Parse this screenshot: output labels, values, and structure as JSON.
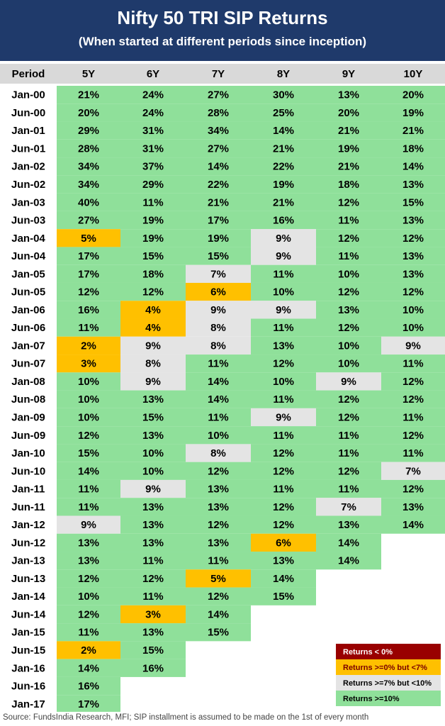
{
  "title": "Nifty 50 TRI SIP Returns",
  "subtitle": "(When started at different periods since inception)",
  "source": "Source: FundsIndia Research, MFI; SIP installment is assumed to be made on the 1st of every month",
  "colors": {
    "header_band": "#1f3a6b",
    "column_header_bg": "#d9d9d9",
    "negative": "#990000",
    "low": "#ffc000",
    "mid": "#e4e4e4",
    "high": "#8fe09a"
  },
  "chart_data": {
    "type": "table",
    "title": "Nifty 50 TRI SIP Returns",
    "subtitle": "(When started at different periods since inception)",
    "row_header": "Period",
    "columns": [
      "5Y",
      "6Y",
      "7Y",
      "8Y",
      "9Y",
      "10Y"
    ],
    "rows": [
      {
        "period": "Jan-00",
        "values": [
          21,
          24,
          27,
          30,
          13,
          20
        ]
      },
      {
        "period": "Jun-00",
        "values": [
          20,
          24,
          28,
          25,
          20,
          19
        ]
      },
      {
        "period": "Jan-01",
        "values": [
          29,
          31,
          34,
          14,
          21,
          21
        ]
      },
      {
        "period": "Jun-01",
        "values": [
          28,
          31,
          27,
          21,
          19,
          18
        ]
      },
      {
        "period": "Jan-02",
        "values": [
          34,
          37,
          14,
          22,
          21,
          14
        ]
      },
      {
        "period": "Jun-02",
        "values": [
          34,
          29,
          22,
          19,
          18,
          13
        ]
      },
      {
        "period": "Jan-03",
        "values": [
          40,
          11,
          21,
          21,
          12,
          15
        ]
      },
      {
        "period": "Jun-03",
        "values": [
          27,
          19,
          17,
          16,
          11,
          13
        ]
      },
      {
        "period": "Jan-04",
        "values": [
          5,
          19,
          19,
          9,
          12,
          12
        ]
      },
      {
        "period": "Jun-04",
        "values": [
          17,
          15,
          15,
          9,
          11,
          13
        ]
      },
      {
        "period": "Jan-05",
        "values": [
          17,
          18,
          7,
          11,
          10,
          13
        ]
      },
      {
        "period": "Jun-05",
        "values": [
          12,
          12,
          6,
          10,
          12,
          12
        ]
      },
      {
        "period": "Jan-06",
        "values": [
          16,
          4,
          9,
          9,
          13,
          10
        ]
      },
      {
        "period": "Jun-06",
        "values": [
          11,
          4,
          8,
          11,
          12,
          10
        ]
      },
      {
        "period": "Jan-07",
        "values": [
          2,
          9,
          8,
          13,
          10,
          9
        ]
      },
      {
        "period": "Jun-07",
        "values": [
          3,
          8,
          11,
          12,
          10,
          11
        ]
      },
      {
        "period": "Jan-08",
        "values": [
          10,
          9,
          14,
          10,
          9,
          12
        ]
      },
      {
        "period": "Jun-08",
        "values": [
          10,
          13,
          14,
          11,
          12,
          12
        ]
      },
      {
        "period": "Jan-09",
        "values": [
          10,
          15,
          11,
          9,
          12,
          11
        ]
      },
      {
        "period": "Jun-09",
        "values": [
          12,
          13,
          10,
          11,
          11,
          12
        ]
      },
      {
        "period": "Jan-10",
        "values": [
          15,
          10,
          8,
          12,
          11,
          11
        ]
      },
      {
        "period": "Jun-10",
        "values": [
          14,
          10,
          12,
          12,
          12,
          7
        ]
      },
      {
        "period": "Jan-11",
        "values": [
          11,
          9,
          13,
          11,
          11,
          12
        ]
      },
      {
        "period": "Jun-11",
        "values": [
          11,
          13,
          13,
          12,
          7,
          13
        ]
      },
      {
        "period": "Jan-12",
        "values": [
          9,
          13,
          12,
          12,
          13,
          14
        ]
      },
      {
        "period": "Jun-12",
        "values": [
          13,
          13,
          13,
          6,
          14,
          null
        ]
      },
      {
        "period": "Jan-13",
        "values": [
          13,
          11,
          11,
          13,
          14,
          null
        ]
      },
      {
        "period": "Jun-13",
        "values": [
          12,
          12,
          5,
          14,
          null,
          null
        ]
      },
      {
        "period": "Jan-14",
        "values": [
          10,
          11,
          12,
          15,
          null,
          null
        ]
      },
      {
        "period": "Jun-14",
        "values": [
          12,
          3,
          14,
          null,
          null,
          null
        ]
      },
      {
        "period": "Jan-15",
        "values": [
          11,
          13,
          15,
          null,
          null,
          null
        ]
      },
      {
        "period": "Jun-15",
        "values": [
          2,
          15,
          null,
          null,
          null,
          null
        ]
      },
      {
        "period": "Jan-16",
        "values": [
          14,
          16,
          null,
          null,
          null,
          null
        ]
      },
      {
        "period": "Jun-16",
        "values": [
          16,
          null,
          null,
          null,
          null,
          null
        ]
      },
      {
        "period": "Jan-17",
        "values": [
          17,
          null,
          null,
          null,
          null,
          null
        ]
      }
    ],
    "value_suffix": "%",
    "legend": {
      "placement": "bottom-right",
      "entries": [
        {
          "label": "Returns < 0%",
          "color": "#990000",
          "text_color": "#ffffff"
        },
        {
          "label": "Returns >=0% but <7%",
          "color": "#ffc000",
          "text_color": "#7a0000"
        },
        {
          "label": "Returns >=7% but <10%",
          "color": "#e4e4e4",
          "text_color": "#000000"
        },
        {
          "label": "Returns >=10%",
          "color": "#8fe09a",
          "text_color": "#000000"
        }
      ]
    }
  }
}
